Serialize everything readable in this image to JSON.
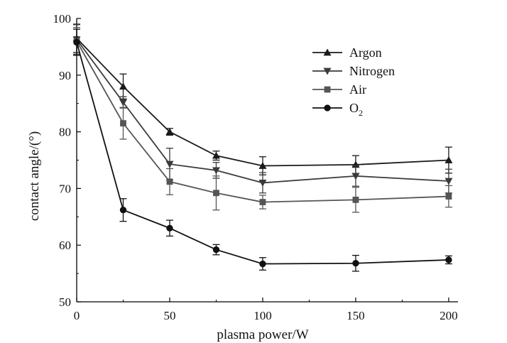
{
  "chart_data": {
    "type": "line",
    "title": "",
    "xlabel": "plasma power/W",
    "ylabel": "contact angle/(°)",
    "xlim": [
      0,
      205
    ],
    "ylim": [
      50,
      100
    ],
    "xticks": [
      0,
      50,
      100,
      150,
      200
    ],
    "yticks": [
      50,
      60,
      70,
      80,
      90,
      100
    ],
    "x": [
      0,
      25,
      50,
      75,
      100,
      150,
      200
    ],
    "legend_position": "top-right",
    "series": [
      {
        "name": "Argon",
        "marker": "triangle-up",
        "color": "#1a1a1a",
        "values": [
          96.5,
          88.0,
          80.0,
          75.8,
          74.0,
          74.2,
          75.0
        ],
        "errors": [
          2.5,
          2.2,
          0.6,
          0.8,
          1.6,
          1.6,
          2.3
        ]
      },
      {
        "name": "Nitrogen",
        "marker": "triangle-down",
        "color": "#3a3a3a",
        "values": [
          96.3,
          85.2,
          74.3,
          73.2,
          71.0,
          72.2,
          71.3
        ],
        "errors": [
          2.6,
          1.0,
          2.8,
          1.4,
          1.8,
          1.8,
          2.1
        ]
      },
      {
        "name": "Air",
        "marker": "square",
        "color": "#555555",
        "values": [
          96.0,
          81.5,
          71.2,
          69.2,
          67.6,
          68.0,
          68.6
        ],
        "errors": [
          2.4,
          2.8,
          2.3,
          3.0,
          1.2,
          2.2,
          1.9
        ]
      },
      {
        "name": "O",
        "name_subscript": "2",
        "marker": "circle",
        "color": "#111111",
        "values": [
          95.8,
          66.2,
          63.0,
          59.2,
          56.7,
          56.8,
          57.4
        ],
        "errors": [
          2.3,
          2.0,
          1.4,
          0.9,
          1.1,
          1.4,
          0.7
        ]
      }
    ]
  }
}
